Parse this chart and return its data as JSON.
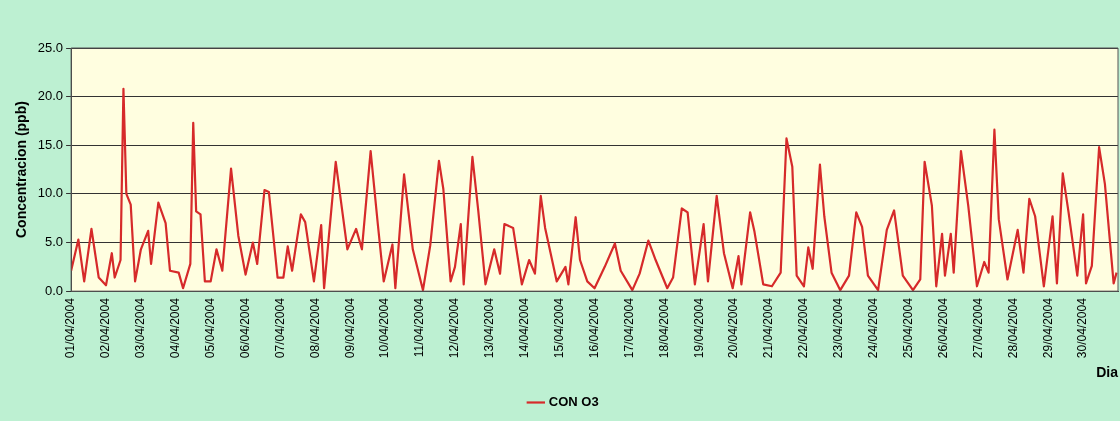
{
  "chart_data": {
    "type": "line",
    "xlabel": "Dia",
    "ylabel": "Concentracion (ppb)",
    "legend": "bottom",
    "grid": "y",
    "marker": "none",
    "line_style": "solid",
    "xlim": [
      "2004-04-01",
      "2004-05-01"
    ],
    "ylim": [
      0,
      25
    ],
    "yticks": [
      {
        "value": 0,
        "label": "0.0"
      },
      {
        "value": 5,
        "label": "5.0"
      },
      {
        "value": 10,
        "label": "10.0"
      },
      {
        "value": 15,
        "label": "15.0"
      },
      {
        "value": 20,
        "label": "20.0"
      },
      {
        "value": 25,
        "label": "25.0"
      }
    ],
    "xticks": [
      {
        "value": "2004-04-01",
        "label": "01/04/2004"
      },
      {
        "value": "2004-04-02",
        "label": "02/04/2004"
      },
      {
        "value": "2004-04-03",
        "label": "03/04/2004"
      },
      {
        "value": "2004-04-04",
        "label": "04/04/2004"
      },
      {
        "value": "2004-04-05",
        "label": "05/04/2004"
      },
      {
        "value": "2004-04-06",
        "label": "06/04/2004"
      },
      {
        "value": "2004-04-07",
        "label": "07/04/2004"
      },
      {
        "value": "2004-04-08",
        "label": "08/04/2004"
      },
      {
        "value": "2004-04-09",
        "label": "09/04/2004"
      },
      {
        "value": "2004-04-10",
        "label": "10/04/2004"
      },
      {
        "value": "2004-04-11",
        "label": "11/04/2004"
      },
      {
        "value": "2004-04-12",
        "label": "12/04/2004"
      },
      {
        "value": "2004-04-13",
        "label": "13/04/2004"
      },
      {
        "value": "2004-04-14",
        "label": "14/04/2004"
      },
      {
        "value": "2004-04-15",
        "label": "15/04/2004"
      },
      {
        "value": "2004-04-16",
        "label": "16/04/2004"
      },
      {
        "value": "2004-04-17",
        "label": "17/04/2004"
      },
      {
        "value": "2004-04-18",
        "label": "18/04/2004"
      },
      {
        "value": "2004-04-19",
        "label": "19/04/2004"
      },
      {
        "value": "2004-04-20",
        "label": "20/04/2004"
      },
      {
        "value": "2004-04-21",
        "label": "21/04/2004"
      },
      {
        "value": "2004-04-22",
        "label": "22/04/2004"
      },
      {
        "value": "2004-04-23",
        "label": "23/04/2004"
      },
      {
        "value": "2004-04-24",
        "label": "24/04/2004"
      },
      {
        "value": "2004-04-25",
        "label": "25/04/2004"
      },
      {
        "value": "2004-04-26",
        "label": "26/04/2004"
      },
      {
        "value": "2004-04-27",
        "label": "27/04/2004"
      },
      {
        "value": "2004-04-28",
        "label": "28/04/2004"
      },
      {
        "value": "2004-04-29",
        "label": "29/04/2004"
      },
      {
        "value": "2004-04-30",
        "label": "30/04/2004"
      }
    ],
    "series": [
      {
        "name": "CON O3",
        "color": "#d62a2a",
        "x": [
          "2004-04-01T00:00",
          "2004-04-01T05:00",
          "2004-04-01T09:00",
          "2004-04-01T14:00",
          "2004-04-01T19:00",
          "2004-04-02T00:00",
          "2004-04-02T04:00",
          "2004-04-02T06:00",
          "2004-04-02T10:00",
          "2004-04-02T12:00",
          "2004-04-02T14:00",
          "2004-04-02T17:00",
          "2004-04-02T20:00",
          "2004-04-03T00:00",
          "2004-04-03T05:00",
          "2004-04-03T07:00",
          "2004-04-03T12:00",
          "2004-04-03T17:00",
          "2004-04-03T20:00",
          "2004-04-04T02:00",
          "2004-04-04T05:00",
          "2004-04-04T10:00",
          "2004-04-04T12:00",
          "2004-04-04T14:00",
          "2004-04-04T17:00",
          "2004-04-04T20:00",
          "2004-04-05T00:00",
          "2004-04-05T04:00",
          "2004-04-05T08:00",
          "2004-04-05T14:00",
          "2004-04-05T19:00",
          "2004-04-06T00:00",
          "2004-04-06T05:00",
          "2004-04-06T08:00",
          "2004-04-06T13:00",
          "2004-04-06T16:00",
          "2004-04-06T22:00",
          "2004-04-07T02:00",
          "2004-04-07T05:00",
          "2004-04-07T08:00",
          "2004-04-07T14:00",
          "2004-04-07T17:00",
          "2004-04-07T23:00",
          "2004-04-08T04:00",
          "2004-04-08T06:00",
          "2004-04-08T14:00",
          "2004-04-08T22:00",
          "2004-04-09T04:00",
          "2004-04-09T08:00",
          "2004-04-09T14:00",
          "2004-04-09T19:00",
          "2004-04-09T23:00",
          "2004-04-10T05:00",
          "2004-04-10T07:00",
          "2004-04-10T13:00",
          "2004-04-10T19:00",
          "2004-04-11T02:00",
          "2004-04-11T07:00",
          "2004-04-11T13:00",
          "2004-04-11T16:00",
          "2004-04-11T21:00",
          "2004-04-12T00:00",
          "2004-04-12T04:00",
          "2004-04-12T06:00",
          "2004-04-12T12:00",
          "2004-04-12T16:00",
          "2004-04-12T21:00",
          "2004-04-13T03:00",
          "2004-04-13T07:00",
          "2004-04-13T10:00",
          "2004-04-13T16:00",
          "2004-04-13T22:00",
          "2004-04-14T03:00",
          "2004-04-14T07:00",
          "2004-04-14T11:00",
          "2004-04-14T14:00",
          "2004-04-14T22:00",
          "2004-04-15T04:00",
          "2004-04-15T06:00",
          "2004-04-15T11:00",
          "2004-04-15T14:00",
          "2004-04-15T19:00",
          "2004-04-16T00:00",
          "2004-04-16T07:00",
          "2004-04-16T14:00",
          "2004-04-16T18:00",
          "2004-04-17T02:00",
          "2004-04-17T07:00",
          "2004-04-17T13:00",
          "2004-04-17T18:00",
          "2004-04-18T02:00",
          "2004-04-18T06:00",
          "2004-04-18T12:00",
          "2004-04-18T16:00",
          "2004-04-18T21:00",
          "2004-04-19T03:00",
          "2004-04-19T06:00",
          "2004-04-19T12:00",
          "2004-04-19T17:00",
          "2004-04-19T23:00",
          "2004-04-20T03:00",
          "2004-04-20T05:00",
          "2004-04-20T11:00",
          "2004-04-20T14:00",
          "2004-04-20T20:00",
          "2004-04-21T02:00",
          "2004-04-21T08:00",
          "2004-04-21T12:00",
          "2004-04-21T16:00",
          "2004-04-21T19:00",
          "2004-04-22T00:00",
          "2004-04-22T03:00",
          "2004-04-22T06:00",
          "2004-04-22T11:00",
          "2004-04-22T14:00",
          "2004-04-22T19:00",
          "2004-04-23T01:00",
          "2004-04-23T07:00",
          "2004-04-23T12:00",
          "2004-04-23T16:00",
          "2004-04-23T20:00",
          "2004-04-24T03:00",
          "2004-04-24T09:00",
          "2004-04-24T14:00",
          "2004-04-24T20:00",
          "2004-04-25T03:00",
          "2004-04-25T08:00",
          "2004-04-25T11:00",
          "2004-04-25T16:00",
          "2004-04-25T19:00",
          "2004-04-25T23:00",
          "2004-04-26T01:00",
          "2004-04-26T05:00",
          "2004-04-26T07:00",
          "2004-04-26T12:00",
          "2004-04-26T17:00",
          "2004-04-26T23:00",
          "2004-04-27T04:00",
          "2004-04-27T07:00",
          "2004-04-27T11:00",
          "2004-04-27T14:00",
          "2004-04-27T20:00",
          "2004-04-28T03:00",
          "2004-04-28T07:00",
          "2004-04-28T11:00",
          "2004-04-28T15:00",
          "2004-04-28T21:00",
          "2004-04-29T03:00",
          "2004-04-29T06:00",
          "2004-04-29T10:00",
          "2004-04-29T14:00",
          "2004-04-29T20:00",
          "2004-04-30T00:00",
          "2004-04-30T02:00",
          "2004-04-30T06:00",
          "2004-04-30T11:00",
          "2004-04-30T15:00",
          "2004-04-30T21:00",
          "2004-04-30T23:00"
        ],
        "values": [
          2.1,
          5.3,
          1.0,
          6.4,
          1.4,
          0.6,
          3.9,
          1.4,
          3.2,
          20.8,
          10.0,
          8.9,
          1.0,
          4.3,
          6.2,
          2.8,
          9.1,
          7.0,
          2.1,
          1.9,
          0.3,
          2.8,
          17.3,
          8.2,
          7.9,
          1.0,
          1.0,
          4.3,
          2.1,
          12.6,
          5.7,
          1.7,
          5.0,
          2.8,
          10.4,
          10.2,
          1.4,
          1.4,
          4.6,
          2.1,
          7.9,
          7.1,
          1.0,
          6.8,
          0.3,
          13.3,
          4.3,
          6.4,
          4.3,
          14.4,
          6.8,
          1.0,
          4.8,
          0.3,
          12.0,
          4.3,
          0.1,
          4.7,
          13.4,
          10.5,
          1.0,
          2.5,
          6.9,
          0.7,
          13.8,
          8.3,
          0.7,
          4.3,
          1.8,
          6.9,
          6.5,
          0.7,
          3.2,
          1.8,
          9.8,
          6.5,
          1.0,
          2.5,
          0.7,
          7.6,
          3.2,
          1.0,
          0.3,
          2.5,
          4.9,
          2.1,
          0.1,
          1.8,
          5.2,
          3.2,
          0.3,
          1.4,
          8.5,
          8.1,
          0.7,
          6.9,
          1.0,
          9.8,
          3.9,
          0.3,
          3.6,
          0.7,
          8.1,
          6.1,
          0.7,
          0.5,
          1.9,
          15.7,
          12.8,
          1.6,
          0.5,
          4.5,
          2.3,
          13.0,
          7.7,
          1.9,
          0.1,
          1.6,
          8.1,
          6.6,
          1.6,
          0.1,
          6.3,
          8.3,
          1.6,
          0.1,
          1.2,
          13.3,
          8.8,
          0.5,
          5.9,
          1.6,
          5.9,
          1.9,
          14.4,
          8.8,
          0.5,
          3.0,
          1.9,
          16.6,
          7.4,
          1.2,
          6.3,
          1.9,
          9.5,
          7.7,
          0.5,
          7.7,
          0.8,
          12.1,
          8.1,
          1.6,
          7.9,
          0.8,
          2.6,
          14.8,
          11.0,
          0.8,
          1.9
        ]
      }
    ]
  }
}
